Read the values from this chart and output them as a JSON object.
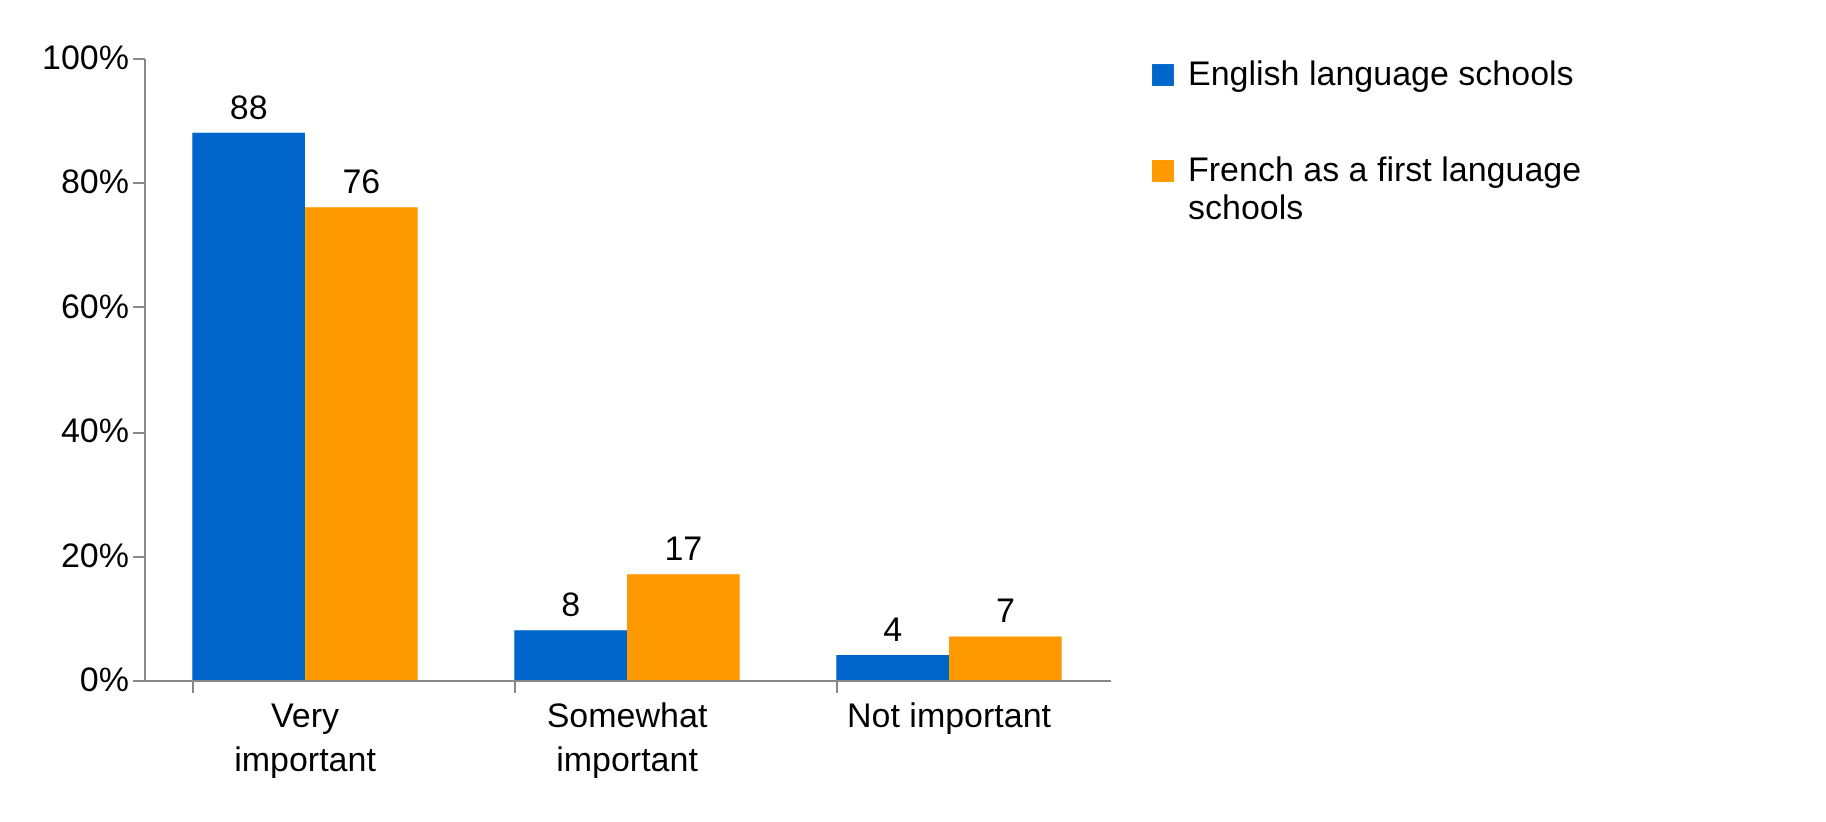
{
  "chart_data": {
    "type": "bar",
    "categories": [
      "Very important",
      "Somewhat important",
      "Not important"
    ],
    "series": [
      {
        "name": "English language schools",
        "color": "#0066cc",
        "values": [
          88,
          8,
          4
        ]
      },
      {
        "name": "French as a first language schools",
        "color": "#ff9900",
        "values": [
          76,
          17,
          7
        ]
      }
    ],
    "ylim": [
      0,
      100
    ],
    "yticks": [
      {
        "value": 0,
        "label": "0%"
      },
      {
        "value": 20,
        "label": "20%"
      },
      {
        "value": 40,
        "label": "40%"
      },
      {
        "value": 60,
        "label": "60%"
      },
      {
        "value": 80,
        "label": "80%"
      },
      {
        "value": 100,
        "label": "100%"
      }
    ],
    "data_labels": true,
    "grid": false,
    "legend": "right"
  }
}
